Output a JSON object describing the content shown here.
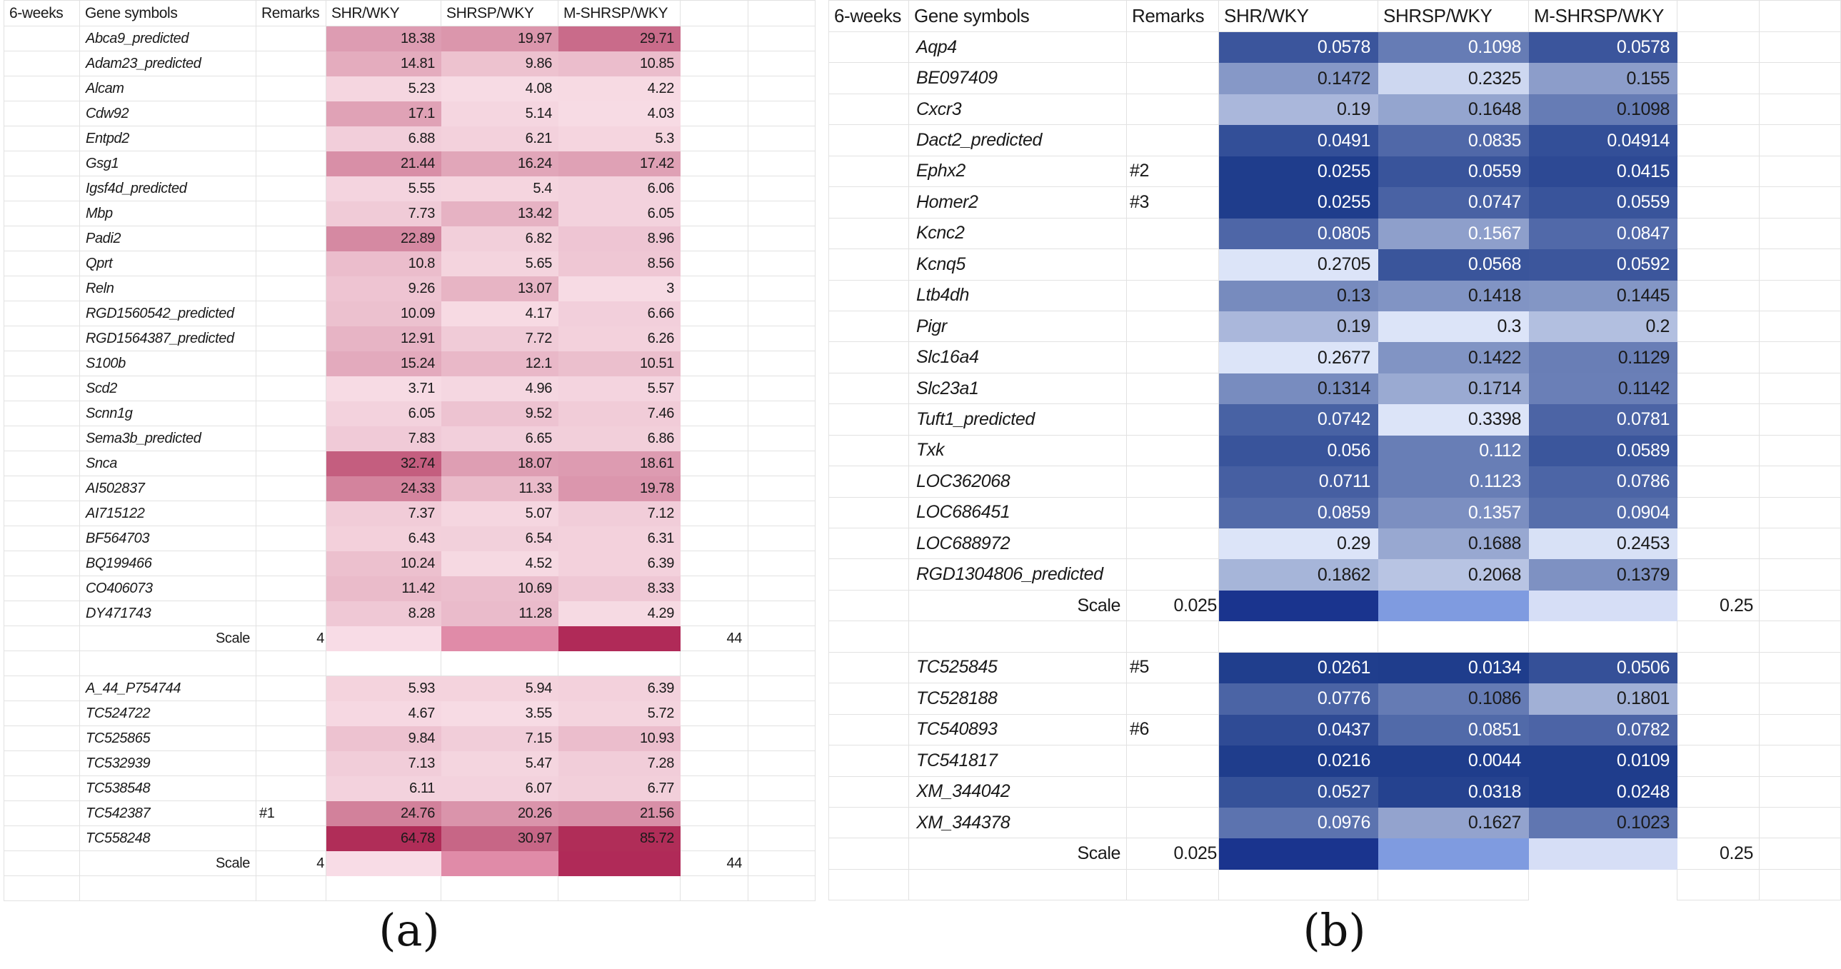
{
  "chart_data": [
    {
      "type": "heatmap",
      "panel": "a",
      "title": "(a)",
      "header": [
        "6-weeks",
        "Gene symbols",
        "Remarks",
        "SHR/WKY",
        "SHRSP/WKY",
        "M-SHRSP/WKY"
      ],
      "colormap": {
        "min": 4,
        "max": 44,
        "at_min": "#F7DBE4",
        "at_max": "#B02D58",
        "text_default": "#1a1a1a"
      },
      "scale": {
        "label": "Scale",
        "min_label": "4",
        "max_label": "44",
        "cell_colors": [
          "#F8DCE6",
          "#E08BA8",
          "#B02A58"
        ]
      },
      "blocks": [
        {
          "rows": [
            {
              "gene": "Abca9_predicted",
              "remark": "",
              "values": [
                "18.38",
                "19.97",
                "29.71"
              ]
            },
            {
              "gene": "Adam23_predicted",
              "remark": "",
              "values": [
                "14.81",
                "9.86",
                "10.85"
              ]
            },
            {
              "gene": "Alcam",
              "remark": "",
              "values": [
                "5.23",
                "4.08",
                "4.22"
              ]
            },
            {
              "gene": "Cdw92",
              "remark": "",
              "values": [
                "17.1",
                "5.14",
                "4.03"
              ]
            },
            {
              "gene": "Entpd2",
              "remark": "",
              "values": [
                "6.88",
                "6.21",
                "5.3"
              ]
            },
            {
              "gene": "Gsg1",
              "remark": "",
              "values": [
                "21.44",
                "16.24",
                "17.42"
              ]
            },
            {
              "gene": "Igsf4d_predicted",
              "remark": "",
              "values": [
                "5.55",
                "5.4",
                "6.06"
              ]
            },
            {
              "gene": "Mbp",
              "remark": "",
              "values": [
                "7.73",
                "13.42",
                "6.05"
              ]
            },
            {
              "gene": "Padi2",
              "remark": "",
              "values": [
                "22.89",
                "6.82",
                "8.96"
              ]
            },
            {
              "gene": "Qprt",
              "remark": "",
              "values": [
                "10.8",
                "5.65",
                "8.56"
              ]
            },
            {
              "gene": "Reln",
              "remark": "",
              "values": [
                "9.26",
                "13.07",
                "3"
              ]
            },
            {
              "gene": "RGD1560542_predicted",
              "remark": "",
              "values": [
                "10.09",
                "4.17",
                "6.66"
              ]
            },
            {
              "gene": "RGD1564387_predicted",
              "remark": "",
              "values": [
                "12.91",
                "7.72",
                "6.26"
              ]
            },
            {
              "gene": "S100b",
              "remark": "",
              "values": [
                "15.24",
                "12.1",
                "10.51"
              ]
            },
            {
              "gene": "Scd2",
              "remark": "",
              "values": [
                "3.71",
                "4.96",
                "5.57"
              ]
            },
            {
              "gene": "Scnn1g",
              "remark": "",
              "values": [
                "6.05",
                "9.52",
                "7.46"
              ]
            },
            {
              "gene": "Sema3b_predicted",
              "remark": "",
              "values": [
                "7.83",
                "6.65",
                "6.86"
              ]
            },
            {
              "gene": "Snca",
              "remark": "",
              "values": [
                "32.74",
                "18.07",
                "18.61"
              ]
            },
            {
              "gene": "AI502837",
              "remark": "",
              "values": [
                "24.33",
                "11.33",
                "19.78"
              ]
            },
            {
              "gene": "AI715122",
              "remark": "",
              "values": [
                "7.37",
                "5.07",
                "7.12"
              ]
            },
            {
              "gene": "BF564703",
              "remark": "",
              "values": [
                "6.43",
                "6.54",
                "6.31"
              ]
            },
            {
              "gene": "BQ199466",
              "remark": "",
              "values": [
                "10.24",
                "4.52",
                "6.39"
              ]
            },
            {
              "gene": "CO406073",
              "remark": "",
              "values": [
                "11.42",
                "10.69",
                "8.33"
              ]
            },
            {
              "gene": "DY471743",
              "remark": "",
              "values": [
                "8.28",
                "11.28",
                "4.29"
              ]
            }
          ]
        },
        {
          "rows": [
            {
              "gene": "A_44_P754744",
              "remark": "",
              "values": [
                "5.93",
                "5.94",
                "6.39"
              ]
            },
            {
              "gene": "TC524722",
              "remark": "",
              "values": [
                "4.67",
                "3.55",
                "5.72"
              ]
            },
            {
              "gene": "TC525865",
              "remark": "",
              "values": [
                "9.84",
                "7.15",
                "10.93"
              ]
            },
            {
              "gene": "TC532939",
              "remark": "",
              "values": [
                "7.13",
                "5.47",
                "7.28"
              ]
            },
            {
              "gene": "TC538548",
              "remark": "",
              "values": [
                "6.11",
                "6.07",
                "6.77"
              ]
            },
            {
              "gene": "TC542387",
              "remark": "#1",
              "values": [
                "24.76",
                "20.26",
                "21.56"
              ]
            },
            {
              "gene": "TC558248",
              "remark": "",
              "values": [
                "64.78",
                "30.97",
                "85.72"
              ]
            }
          ]
        }
      ]
    },
    {
      "type": "heatmap",
      "panel": "b",
      "title": "(b)",
      "header": [
        "6-weeks",
        "Gene symbols",
        "Remarks",
        "SHR/WKY",
        "SHRSP/WKY",
        "M-SHRSP/WKY"
      ],
      "colormap": {
        "min": 0.025,
        "max": 0.25,
        "at_min": "#1F3D8C",
        "at_max": "#DCE4F8",
        "text_default": "#1a1a1a"
      },
      "scale": {
        "label": "Scale",
        "min_label": "0.025",
        "max_label": "0.25",
        "cell_colors": [
          "#1A348E",
          "#7F9BE0",
          "#D6DEF6"
        ]
      },
      "blocks": [
        {
          "rows": [
            {
              "gene": "Aqp4",
              "remark": "",
              "values": [
                "0.0578",
                "0.1098",
                "0.0578"
              ],
              "text_colors": [
                "w",
                "w",
                "w"
              ]
            },
            {
              "gene": "BE097409",
              "remark": "",
              "values": [
                "0.1472",
                "0.2325",
                "0.155"
              ],
              "text_colors": [
                "b",
                "b",
                "b"
              ]
            },
            {
              "gene": "Cxcr3",
              "remark": "",
              "values": [
                "0.19",
                "0.1648",
                "0.1098"
              ],
              "text_colors": [
                "b",
                "b",
                "b"
              ]
            },
            {
              "gene": "Dact2_predicted",
              "remark": "",
              "values": [
                "0.0491",
                "0.0835",
                "0.04914"
              ],
              "text_colors": [
                "w",
                "w",
                "w"
              ]
            },
            {
              "gene": "Ephx2",
              "remark": "#2",
              "values": [
                "0.0255",
                "0.0559",
                "0.0415"
              ],
              "text_colors": [
                "w",
                "w",
                "w"
              ]
            },
            {
              "gene": "Homer2",
              "remark": "#3",
              "values": [
                "0.0255",
                "0.0747",
                "0.0559"
              ],
              "text_colors": [
                "w",
                "w",
                "w"
              ]
            },
            {
              "gene": "Kcnc2",
              "remark": "",
              "values": [
                "0.0805",
                "0.1567",
                "0.0847"
              ],
              "text_colors": [
                "w",
                "w",
                "w"
              ]
            },
            {
              "gene": "Kcnq5",
              "remark": "",
              "values": [
                "0.2705",
                "0.0568",
                "0.0592"
              ],
              "text_colors": [
                "b",
                "w",
                "w"
              ]
            },
            {
              "gene": "Ltb4dh",
              "remark": "",
              "values": [
                "0.13",
                "0.1418",
                "0.1445"
              ],
              "text_colors": [
                "b",
                "b",
                "b"
              ]
            },
            {
              "gene": "Pigr",
              "remark": "",
              "values": [
                "0.19",
                "0.3",
                "0.2"
              ],
              "text_colors": [
                "b",
                "b",
                "b"
              ]
            },
            {
              "gene": "Slc16a4",
              "remark": "",
              "values": [
                "0.2677",
                "0.1422",
                "0.1129"
              ],
              "text_colors": [
                "b",
                "b",
                "b"
              ]
            },
            {
              "gene": "Slc23a1",
              "remark": "",
              "values": [
                "0.1314",
                "0.1714",
                "0.1142"
              ],
              "text_colors": [
                "b",
                "b",
                "b"
              ]
            },
            {
              "gene": "Tuft1_predicted",
              "remark": "",
              "values": [
                "0.0742",
                "0.3398",
                "0.0781"
              ],
              "text_colors": [
                "w",
                "b",
                "w"
              ]
            },
            {
              "gene": "Txk",
              "remark": "",
              "values": [
                "0.056",
                "0.112",
                "0.0589"
              ],
              "text_colors": [
                "w",
                "w",
                "w"
              ]
            },
            {
              "gene": "LOC362068",
              "remark": "",
              "values": [
                "0.0711",
                "0.1123",
                "0.0786"
              ],
              "text_colors": [
                "w",
                "w",
                "w"
              ]
            },
            {
              "gene": "LOC686451",
              "remark": "",
              "values": [
                "0.0859",
                "0.1357",
                "0.0904"
              ],
              "text_colors": [
                "w",
                "w",
                "w"
              ]
            },
            {
              "gene": "LOC688972",
              "remark": "",
              "values": [
                "0.29",
                "0.1688",
                "0.2453"
              ],
              "text_colors": [
                "b",
                "b",
                "b"
              ]
            },
            {
              "gene": "RGD1304806_predicted",
              "remark": "",
              "values": [
                "0.1862",
                "0.2068",
                "0.1379"
              ],
              "text_colors": [
                "b",
                "b",
                "b"
              ]
            }
          ]
        },
        {
          "rows": [
            {
              "gene": "TC525845",
              "remark": "#5",
              "values": [
                "0.0261",
                "0.0134",
                "0.0506"
              ],
              "text_colors": [
                "w",
                "w",
                "w"
              ]
            },
            {
              "gene": "TC528188",
              "remark": "",
              "values": [
                "0.0776",
                "0.1086",
                "0.1801"
              ],
              "text_colors": [
                "w",
                "b",
                "b"
              ]
            },
            {
              "gene": "TC540893",
              "remark": "#6",
              "values": [
                "0.0437",
                "0.0851",
                "0.0782"
              ],
              "text_colors": [
                "w",
                "w",
                "w"
              ]
            },
            {
              "gene": "TC541817",
              "remark": "",
              "values": [
                "0.0216",
                "0.0044",
                "0.0109"
              ],
              "text_colors": [
                "w",
                "w",
                "w"
              ]
            },
            {
              "gene": "XM_344042",
              "remark": "",
              "values": [
                "0.0527",
                "0.0318",
                "0.0248"
              ],
              "text_colors": [
                "w",
                "w",
                "w"
              ]
            },
            {
              "gene": "XM_344378",
              "remark": "",
              "values": [
                "0.0976",
                "0.1627",
                "0.1023"
              ],
              "text_colors": [
                "w",
                "b",
                "b"
              ]
            }
          ]
        }
      ]
    }
  ]
}
